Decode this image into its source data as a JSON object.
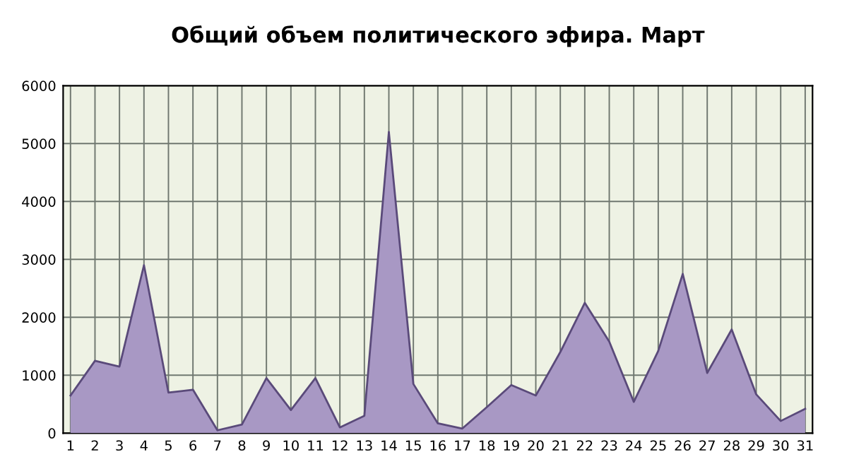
{
  "chart_data": {
    "type": "area",
    "title": "Общий объем политического эфира. Март",
    "categories": [
      "1",
      "2",
      "3",
      "4",
      "5",
      "6",
      "7",
      "8",
      "9",
      "10",
      "11",
      "12",
      "13",
      "14",
      "15",
      "16",
      "17",
      "18",
      "19",
      "20",
      "21",
      "22",
      "23",
      "24",
      "25",
      "26",
      "27",
      "28",
      "29",
      "30",
      "31"
    ],
    "series": [
      {
        "color": "#a898c4",
        "values": [
          650,
          1250,
          1150,
          2900,
          700,
          750,
          50,
          150,
          950,
          400,
          950,
          100,
          300,
          5200,
          850,
          170,
          80,
          450,
          830,
          650,
          1400,
          2250,
          1580,
          540,
          1420,
          2750,
          1040,
          1790,
          670,
          210,
          420
        ]
      }
    ],
    "ylim": [
      0,
      6000
    ],
    "yticks": [
      0,
      1000,
      2000,
      3000,
      4000,
      5000,
      6000
    ],
    "grid": true,
    "legend": false
  }
}
